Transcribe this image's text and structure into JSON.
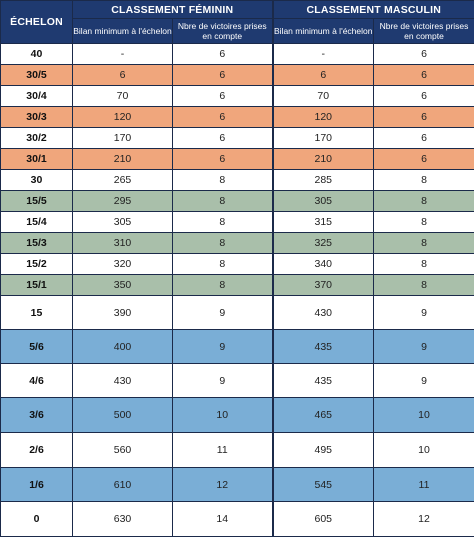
{
  "header": {
    "echelon": "ÉCHELON",
    "feminin_title": "CLASSEMENT FÉMININ",
    "masculin_title": "CLASSEMENT MASCULIN",
    "bilan_label": "Bilan minimum à l'échelon",
    "victoires_label": "Nbre de victoires prises en compte"
  },
  "rows": [
    {
      "echelon": "40",
      "f_bilan": "-",
      "f_vict": "6",
      "m_bilan": "-",
      "m_vict": "6",
      "color": "plain"
    },
    {
      "echelon": "30/5",
      "f_bilan": "6",
      "f_vict": "6",
      "m_bilan": "6",
      "m_vict": "6",
      "color": "orange"
    },
    {
      "echelon": "30/4",
      "f_bilan": "70",
      "f_vict": "6",
      "m_bilan": "70",
      "m_vict": "6",
      "color": "plain"
    },
    {
      "echelon": "30/3",
      "f_bilan": "120",
      "f_vict": "6",
      "m_bilan": "120",
      "m_vict": "6",
      "color": "orange"
    },
    {
      "echelon": "30/2",
      "f_bilan": "170",
      "f_vict": "6",
      "m_bilan": "170",
      "m_vict": "6",
      "color": "plain"
    },
    {
      "echelon": "30/1",
      "f_bilan": "210",
      "f_vict": "6",
      "m_bilan": "210",
      "m_vict": "6",
      "color": "orange"
    },
    {
      "echelon": "30",
      "f_bilan": "265",
      "f_vict": "8",
      "m_bilan": "285",
      "m_vict": "8",
      "color": "plain"
    },
    {
      "echelon": "15/5",
      "f_bilan": "295",
      "f_vict": "8",
      "m_bilan": "305",
      "m_vict": "8",
      "color": "green"
    },
    {
      "echelon": "15/4",
      "f_bilan": "305",
      "f_vict": "8",
      "m_bilan": "315",
      "m_vict": "8",
      "color": "plain"
    },
    {
      "echelon": "15/3",
      "f_bilan": "310",
      "f_vict": "8",
      "m_bilan": "325",
      "m_vict": "8",
      "color": "green"
    },
    {
      "echelon": "15/2",
      "f_bilan": "320",
      "f_vict": "8",
      "m_bilan": "340",
      "m_vict": "8",
      "color": "plain"
    },
    {
      "echelon": "15/1",
      "f_bilan": "350",
      "f_vict": "8",
      "m_bilan": "370",
      "m_vict": "8",
      "color": "green"
    },
    {
      "echelon": "15",
      "f_bilan": "390",
      "f_vict": "9",
      "m_bilan": "430",
      "m_vict": "9",
      "color": "white"
    },
    {
      "echelon": "5/6",
      "f_bilan": "400",
      "f_vict": "9",
      "m_bilan": "435",
      "m_vict": "9",
      "color": "blue"
    },
    {
      "echelon": "4/6",
      "f_bilan": "430",
      "f_vict": "9",
      "m_bilan": "435",
      "m_vict": "9",
      "color": "white"
    },
    {
      "echelon": "3/6",
      "f_bilan": "500",
      "f_vict": "10",
      "m_bilan": "465",
      "m_vict": "10",
      "color": "blue"
    },
    {
      "echelon": "2/6",
      "f_bilan": "560",
      "f_vict": "11",
      "m_bilan": "495",
      "m_vict": "10",
      "color": "white"
    },
    {
      "echelon": "1/6",
      "f_bilan": "610",
      "f_vict": "12",
      "m_bilan": "545",
      "m_vict": "11",
      "color": "blue"
    },
    {
      "echelon": "0",
      "f_bilan": "630",
      "f_vict": "14",
      "m_bilan": "605",
      "m_vict": "12",
      "color": "white"
    }
  ]
}
